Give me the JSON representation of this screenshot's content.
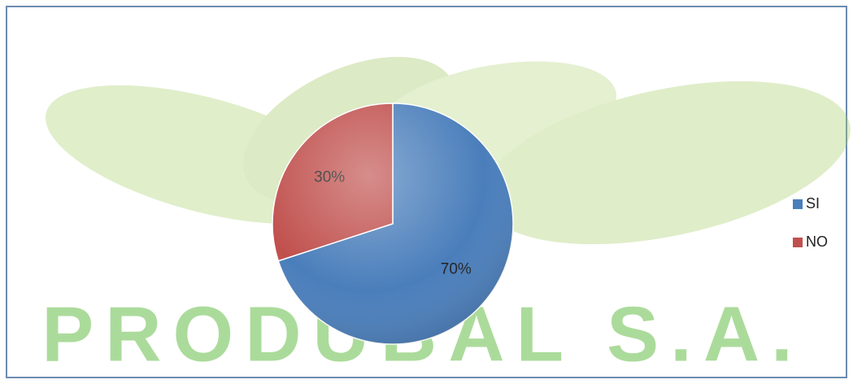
{
  "chart_data": {
    "type": "pie",
    "watermark": "PRODUBAL S.A.",
    "categories": [
      "SI",
      "NO"
    ],
    "values": [
      70,
      30
    ],
    "value_labels": [
      "70%",
      "30%"
    ],
    "colors": [
      "#4a7ebb",
      "#c0504d"
    ],
    "legend": "right"
  }
}
